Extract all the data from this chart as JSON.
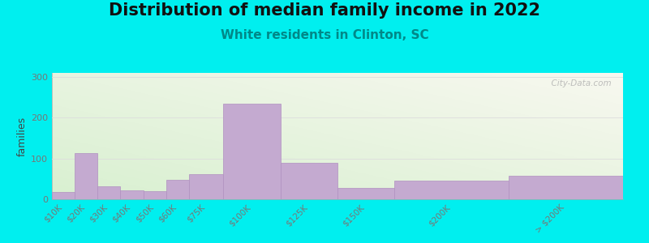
{
  "title": "Distribution of median family income in 2022",
  "subtitle": "White residents in Clinton, SC",
  "ylabel": "families",
  "categories": [
    "$10K",
    "$20K",
    "$30K",
    "$40K",
    "$50K",
    "$60K",
    "$75K",
    "$100K",
    "$125K",
    "$150K",
    "$200K",
    "> $200K"
  ],
  "values": [
    17,
    113,
    32,
    22,
    20,
    47,
    62,
    235,
    90,
    27,
    45,
    57
  ],
  "bar_left_edges": [
    0,
    10,
    20,
    30,
    40,
    50,
    60,
    75,
    100,
    125,
    150,
    200
  ],
  "bar_widths": [
    10,
    10,
    10,
    10,
    10,
    10,
    15,
    25,
    25,
    25,
    50,
    50
  ],
  "bar_color": "#c4aad0",
  "bar_edge_color": "#b090c0",
  "ylim": [
    0,
    310
  ],
  "xlim": [
    0,
    250
  ],
  "yticks": [
    0,
    100,
    200,
    300
  ],
  "background_color": "#00efef",
  "plot_bg_color_top_left": "#d8f0d0",
  "plot_bg_color_bottom_right": "#f8f8f0",
  "title_fontsize": 15,
  "subtitle_fontsize": 11,
  "subtitle_color": "#008888",
  "watermark": "  City-Data.com",
  "grid_color": "#dddddd",
  "tick_label_color": "#777777",
  "ylabel_color": "#444444"
}
